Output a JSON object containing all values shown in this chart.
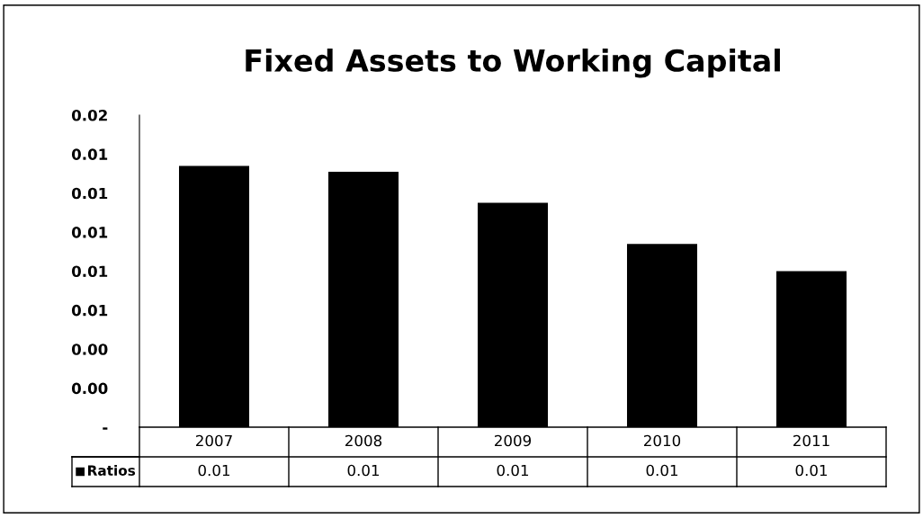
{
  "chart_data": {
    "type": "bar",
    "title": "Fixed Assets to Working Capital",
    "categories": [
      "2007",
      "2008",
      "2009",
      "2010",
      "2011"
    ],
    "series": [
      {
        "name": "Ratios",
        "color": "#000000",
        "values": [
          0.0134,
          0.0131,
          0.0115,
          0.0094,
          0.008
        ],
        "value_labels": [
          "0.01",
          "0.01",
          "0.01",
          "0.01",
          "0.01"
        ]
      }
    ],
    "ylim": [
      0,
      0.016
    ],
    "yticks": [
      {
        "value": 0,
        "label": "-"
      },
      {
        "value": 0.002,
        "label": "0.00"
      },
      {
        "value": 0.004,
        "label": "0.00"
      },
      {
        "value": 0.006,
        "label": "0.01"
      },
      {
        "value": 0.008,
        "label": "0.01"
      },
      {
        "value": 0.01,
        "label": "0.01"
      },
      {
        "value": 0.012,
        "label": "0.01"
      },
      {
        "value": 0.014,
        "label": "0.01"
      },
      {
        "value": 0.016,
        "label": "0.02"
      }
    ],
    "grid": false
  }
}
